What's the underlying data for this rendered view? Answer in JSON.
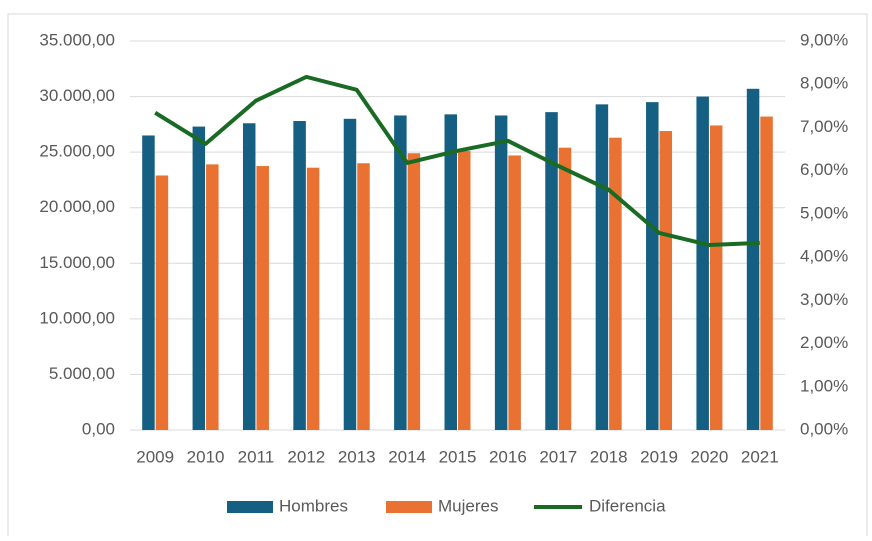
{
  "chart_data": {
    "type": "bar",
    "categories": [
      "2009",
      "2010",
      "2011",
      "2012",
      "2013",
      "2014",
      "2015",
      "2016",
      "2017",
      "2018",
      "2019",
      "2020",
      "2021"
    ],
    "series": [
      {
        "name": "Hombres",
        "color": "#156082",
        "values": [
          26500,
          27300,
          27600,
          27800,
          28000,
          28300,
          28400,
          28300,
          28600,
          29300,
          29500,
          30000,
          30700
        ]
      },
      {
        "name": "Mujeres",
        "color": "#e97132",
        "values": [
          22900,
          23900,
          23750,
          23600,
          24000,
          24900,
          25100,
          24700,
          25400,
          26300,
          26900,
          27400,
          28200
        ]
      },
      {
        "name": "Diferencia",
        "color": "#196b24",
        "type": "line",
        "axis": "y2",
        "values": [
          7.34,
          6.62,
          7.62,
          8.17,
          7.87,
          6.18,
          6.46,
          6.69,
          6.11,
          5.56,
          4.56,
          4.28,
          4.33
        ]
      }
    ],
    "ylim": [
      0,
      35000
    ],
    "yticks": [
      {
        "value": 0,
        "label": "0,00"
      },
      {
        "value": 5000,
        "label": "5.000,00"
      },
      {
        "value": 10000,
        "label": "10.000,00"
      },
      {
        "value": 15000,
        "label": "15.000,00"
      },
      {
        "value": 20000,
        "label": "20.000,00"
      },
      {
        "value": 25000,
        "label": "25.000,00"
      },
      {
        "value": 30000,
        "label": "30.000,00"
      },
      {
        "value": 35000,
        "label": "35.000,00"
      }
    ],
    "y2lim": [
      0,
      9
    ],
    "y2ticks": [
      {
        "value": 0,
        "label": "0,00%"
      },
      {
        "value": 1,
        "label": "1,00%"
      },
      {
        "value": 2,
        "label": "2,00%"
      },
      {
        "value": 3,
        "label": "3,00%"
      },
      {
        "value": 4,
        "label": "4,00%"
      },
      {
        "value": 5,
        "label": "5,00%"
      },
      {
        "value": 6,
        "label": "6,00%"
      },
      {
        "value": 7,
        "label": "7,00%"
      },
      {
        "value": 8,
        "label": "8,00%"
      },
      {
        "value": 9,
        "label": "9,00%"
      }
    ],
    "grid": true,
    "legend": "bottom"
  }
}
